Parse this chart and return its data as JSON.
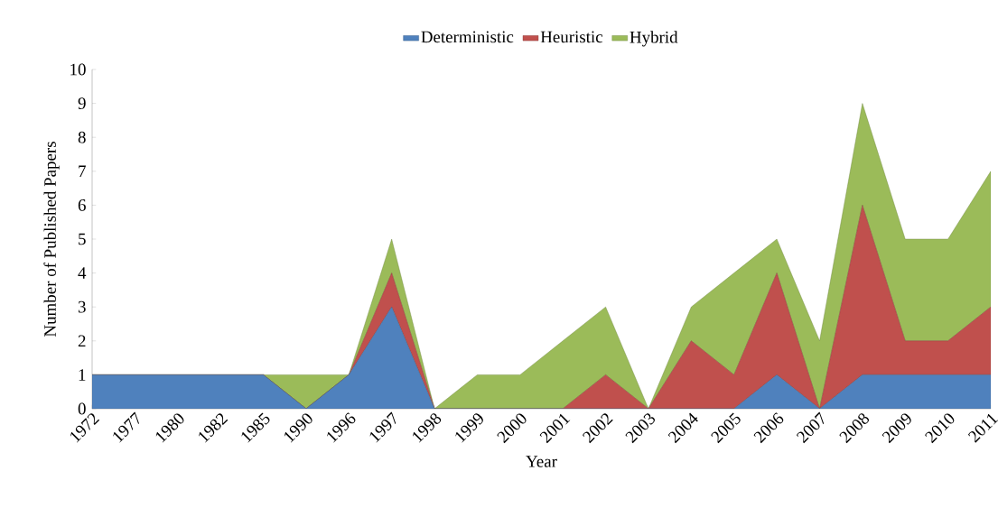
{
  "chart_data": {
    "type": "area",
    "stacked": true,
    "xlabel": "Year",
    "ylabel": "Number of Published Papers",
    "categories": [
      "1972",
      "1977",
      "1980",
      "1982",
      "1985",
      "1990",
      "1996",
      "1997",
      "1998",
      "1999",
      "2000",
      "2001",
      "2002",
      "2003",
      "2004",
      "2005",
      "2006",
      "2007",
      "2008",
      "2009",
      "2010",
      "2011"
    ],
    "series": [
      {
        "name": "Deterministic",
        "color": "#4f81bd",
        "values": [
          1,
          1,
          1,
          1,
          1,
          0,
          1,
          3,
          0,
          0,
          0,
          0,
          0,
          0,
          0,
          0,
          1,
          0,
          1,
          1,
          1,
          1
        ]
      },
      {
        "name": "Heuristic",
        "color": "#c0504d",
        "values": [
          0,
          0,
          0,
          0,
          0,
          0,
          0,
          1,
          0,
          0,
          0,
          0,
          1,
          0,
          2,
          1,
          3,
          0,
          5,
          1,
          1,
          2
        ]
      },
      {
        "name": "Hybrid",
        "color": "#9bbb59",
        "values": [
          0,
          0,
          0,
          0,
          0,
          1,
          0,
          1,
          0,
          1,
          1,
          2,
          2,
          0,
          1,
          3,
          1,
          2,
          3,
          3,
          3,
          4
        ]
      }
    ],
    "ylim": [
      0,
      10
    ],
    "yticks": [
      0,
      1,
      2,
      3,
      4,
      5,
      6,
      7,
      8,
      9,
      10
    ],
    "legend": "top"
  }
}
